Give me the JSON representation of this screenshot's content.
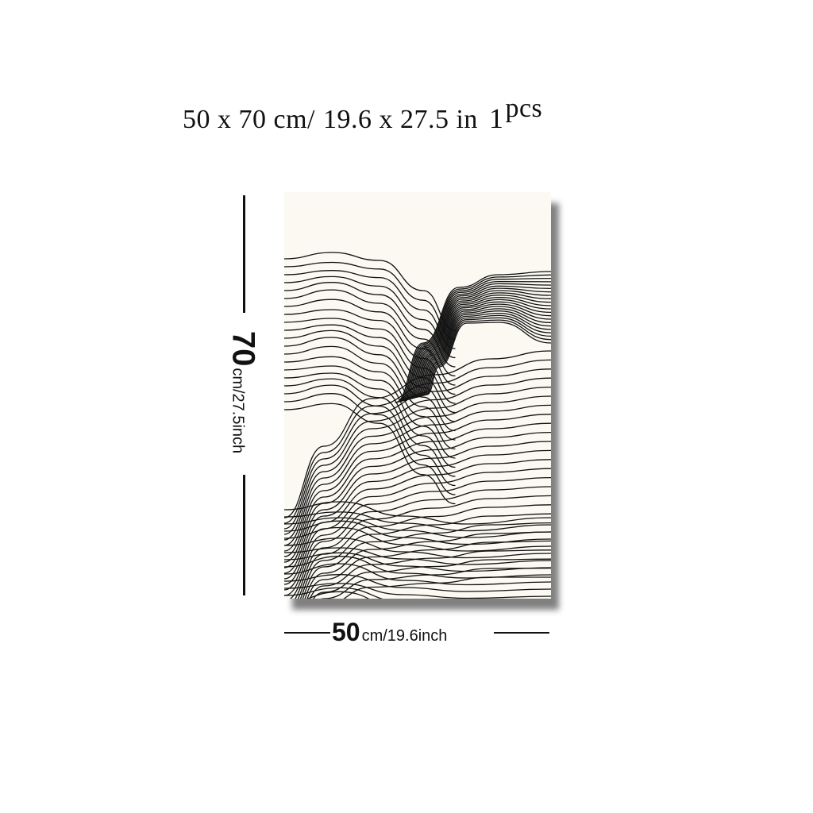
{
  "headline": {
    "size_cm": "50 x 70 cm/",
    "size_in": "19.6 x 27.5 in",
    "qty": "1",
    "qty_unit": "pcs"
  },
  "height_dimension": {
    "value": "70",
    "unit": "cm/27.5inch"
  },
  "width_dimension": {
    "value": "50",
    "unit": "cm/19.6inch"
  },
  "artwork": {
    "subject": "abstract line-art mountain waves",
    "background_color": "#fbf9f2",
    "line_color": "#111111"
  }
}
